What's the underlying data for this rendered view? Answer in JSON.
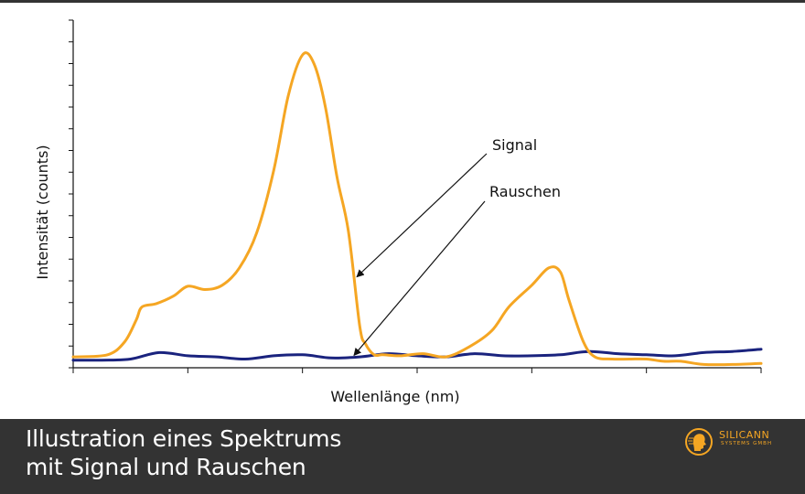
{
  "chart_data": {
    "type": "line",
    "xlabel": "Wellenlänge (nm)",
    "ylabel": "Intensität (counts)",
    "xlim": [
      0,
      12
    ],
    "ylim": [
      0,
      16
    ],
    "grid": false,
    "ticks_labeled": false,
    "series": [
      {
        "name": "Signal",
        "color": "#f5a623",
        "x": [
          0,
          0.6,
          0.9,
          1.1,
          1.2,
          1.45,
          1.75,
          2.0,
          2.3,
          2.6,
          2.9,
          3.2,
          3.5,
          3.75,
          4.0,
          4.2,
          4.4,
          4.6,
          4.8,
          5.0,
          5.1,
          5.25,
          5.4,
          5.7,
          6.1,
          6.5,
          6.9,
          7.3,
          7.6,
          8.0,
          8.3,
          8.5,
          8.65,
          8.9,
          9.1,
          9.4,
          9.7,
          10.0,
          10.3,
          10.6,
          11.0,
          11.5,
          12.0
        ],
        "y": [
          0.5,
          0.6,
          1.2,
          2.2,
          2.8,
          2.95,
          3.3,
          3.75,
          3.6,
          3.8,
          4.6,
          6.2,
          9.1,
          12.5,
          14.4,
          14.0,
          12.0,
          8.8,
          6.3,
          1.9,
          1.1,
          0.6,
          0.6,
          0.55,
          0.65,
          0.5,
          0.95,
          1.7,
          2.8,
          3.8,
          4.6,
          4.4,
          3.1,
          1.2,
          0.5,
          0.4,
          0.4,
          0.4,
          0.3,
          0.3,
          0.15,
          0.15,
          0.2
        ]
      },
      {
        "name": "Rauschen",
        "color": "#1a237e",
        "x": [
          0,
          0.5,
          1.0,
          1.5,
          2.0,
          2.5,
          3.0,
          3.5,
          4.0,
          4.5,
          5.0,
          5.5,
          6.0,
          6.5,
          7.0,
          7.5,
          8.0,
          8.5,
          9.0,
          9.5,
          10.0,
          10.5,
          11.0,
          11.5,
          12.0
        ],
        "y": [
          0.35,
          0.35,
          0.4,
          0.7,
          0.55,
          0.5,
          0.4,
          0.55,
          0.6,
          0.45,
          0.5,
          0.65,
          0.55,
          0.5,
          0.65,
          0.55,
          0.55,
          0.6,
          0.75,
          0.65,
          0.6,
          0.55,
          0.7,
          0.75,
          0.85
        ]
      }
    ],
    "annotations": [
      {
        "text": "Signal",
        "series": "Signal",
        "point_x": 4.9
      },
      {
        "text": "Rauschen",
        "series": "Rauschen",
        "point_x": 4.85
      }
    ]
  },
  "footer": {
    "caption": "Illustration eines Spektrums\nmit Signal und Rauschen",
    "logo_name": "SILICANN",
    "logo_sub": "SYSTEMS GMBH",
    "logo_color": "#f5a623",
    "background": "#333333"
  }
}
